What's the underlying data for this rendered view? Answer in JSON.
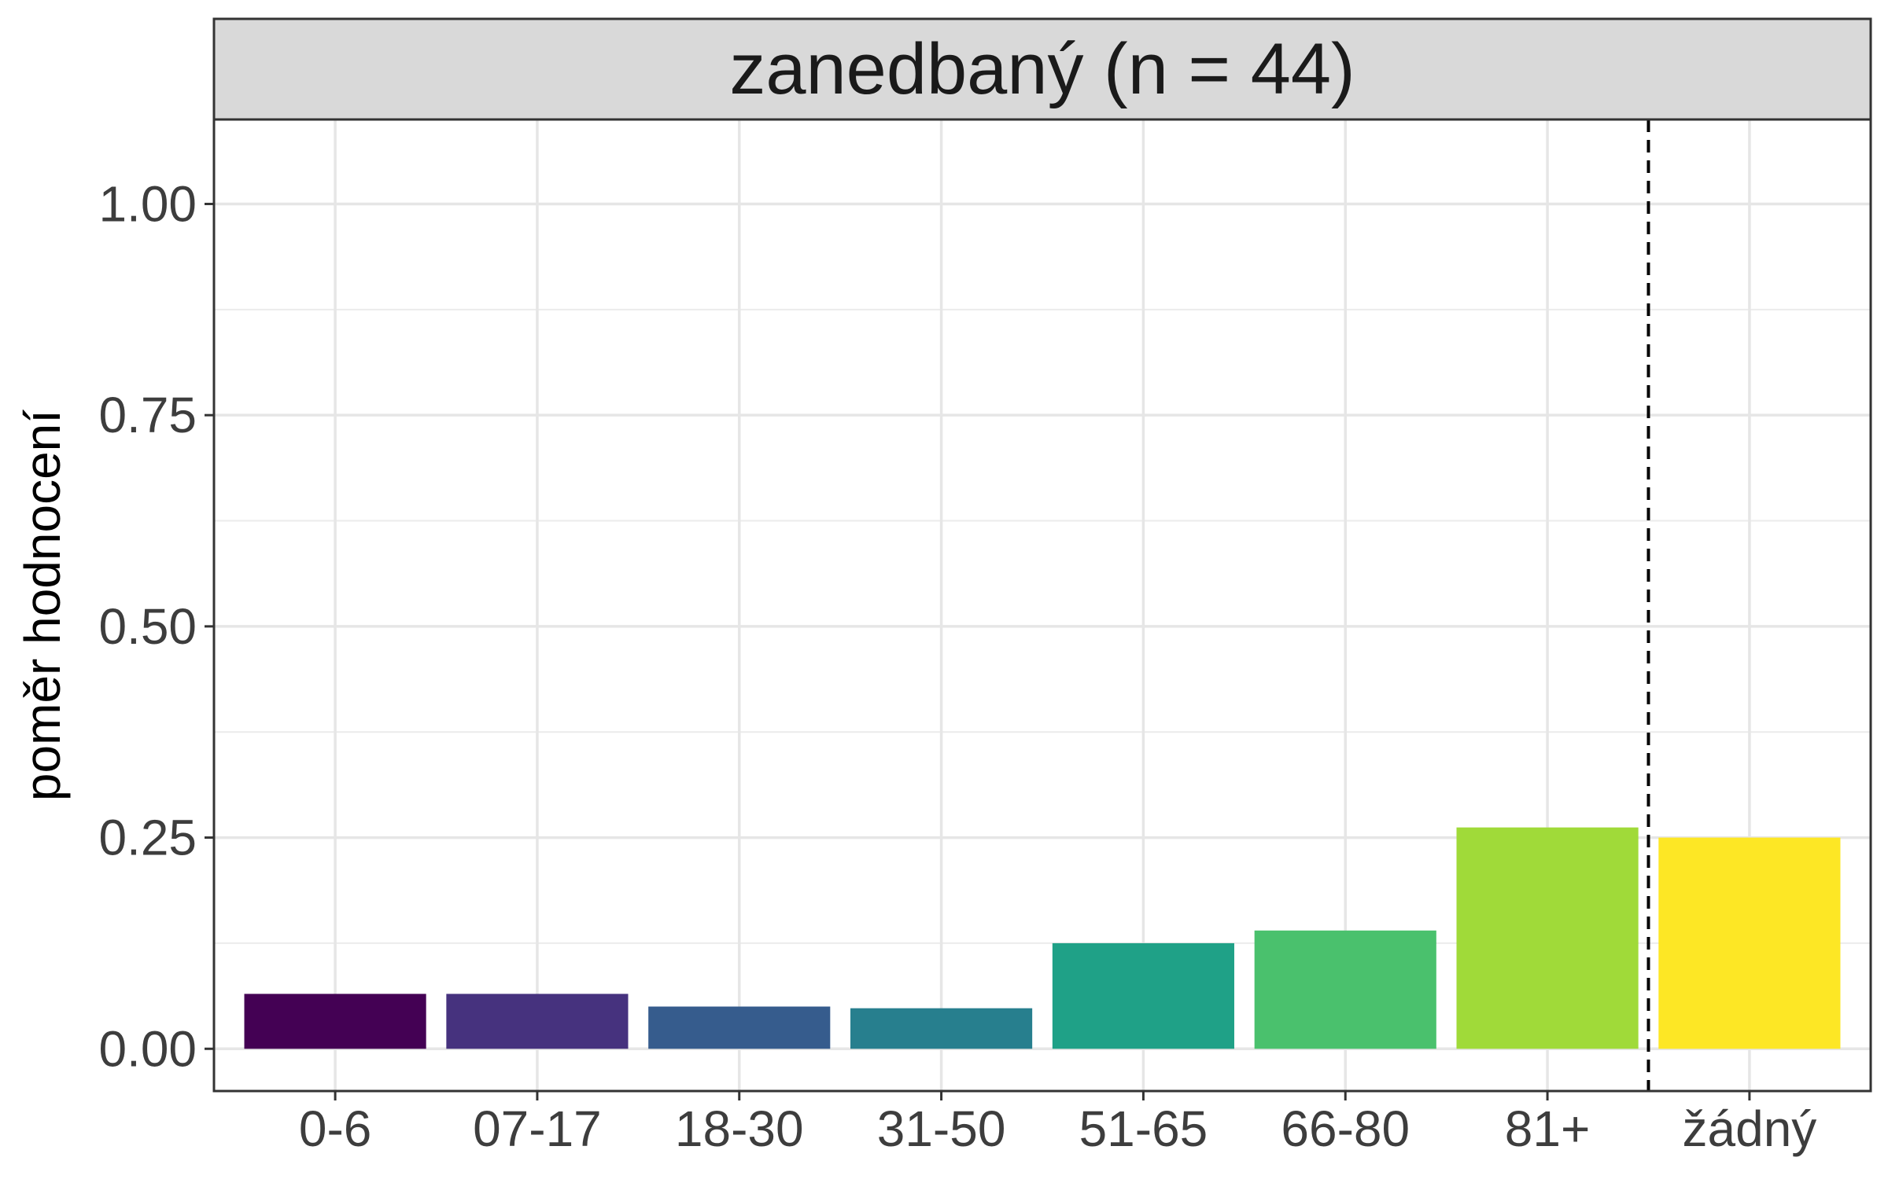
{
  "chart_data": {
    "type": "bar",
    "facet_title": "zanedbaný (n = 44)",
    "xlabel": "",
    "ylabel": "poměr hodnocení",
    "categories": [
      "0-6",
      "07-17",
      "18-30",
      "31-50",
      "51-65",
      "66-80",
      "81+",
      "žádný"
    ],
    "values": [
      0.065,
      0.065,
      0.05,
      0.048,
      0.125,
      0.14,
      0.262,
      0.25
    ],
    "colors": [
      "#440154",
      "#46327e",
      "#365c8d",
      "#277f8e",
      "#1fa187",
      "#4ac16d",
      "#a0da39",
      "#fde725"
    ],
    "ylim": [
      -0.05,
      1.1
    ],
    "yticks": [
      0,
      0.25,
      0.5,
      0.75,
      1.0
    ],
    "ytick_labels": [
      "0.00",
      "0.25",
      "0.50",
      "0.75",
      "1.00"
    ],
    "reference_line": {
      "between": [
        "81+",
        "žádný"
      ],
      "style": "dashed",
      "color": "#000000"
    },
    "grid": true,
    "legend": "none"
  }
}
